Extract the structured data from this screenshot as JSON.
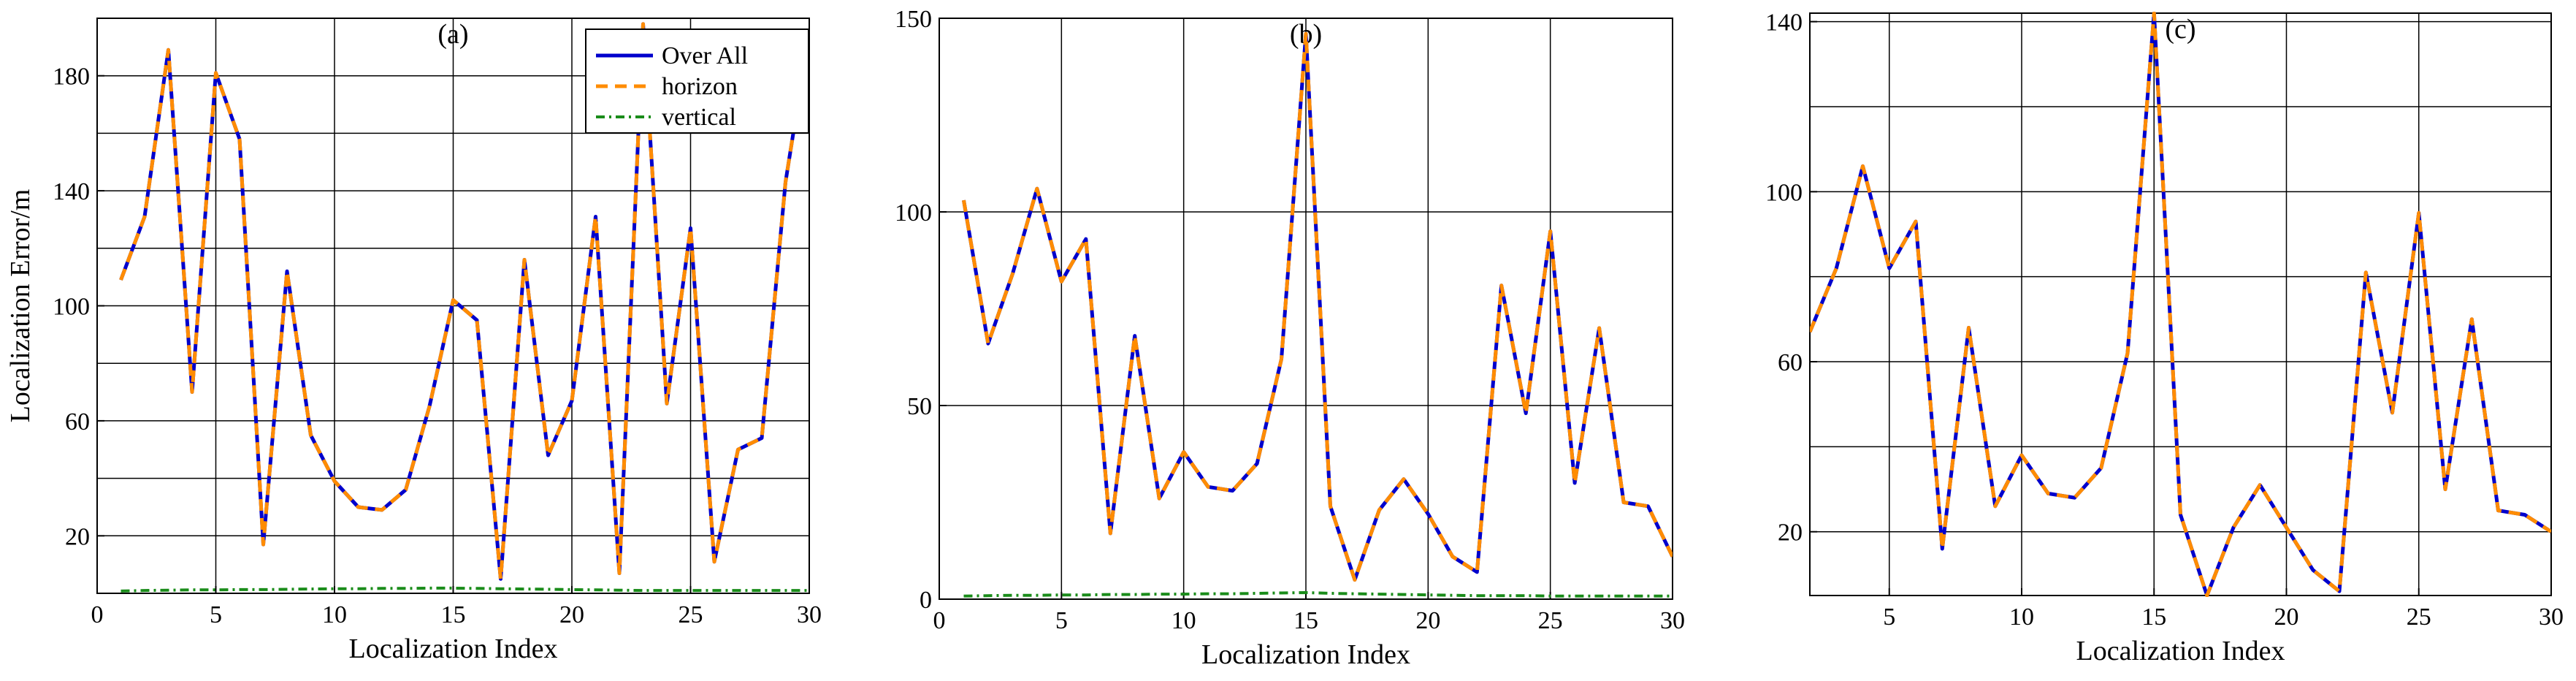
{
  "colors": {
    "overall": "#0000cc",
    "horizon": "#ff8c00",
    "vertical": "#1a8c1a",
    "grid": "#000000"
  },
  "chart_data": [
    {
      "type": "line",
      "title": "(a)",
      "xlabel": "Localization Index",
      "ylabel": "Localization Error/m",
      "xlim": [
        0,
        30
      ],
      "ylim": [
        0,
        200
      ],
      "xticks": [
        0,
        5,
        10,
        15,
        20,
        25,
        30
      ],
      "yticks": [
        20,
        60,
        100,
        140,
        180
      ],
      "ygrid": [
        20,
        40,
        60,
        80,
        100,
        120,
        140,
        160,
        180,
        200
      ],
      "legend": {
        "position": "top-right",
        "entries": [
          "Over All",
          "horizon",
          "vertical"
        ]
      },
      "x": [
        1,
        2,
        3,
        4,
        5,
        6,
        7,
        8,
        9,
        10,
        11,
        12,
        13,
        14,
        15,
        16,
        17,
        18,
        19,
        20,
        21,
        22,
        23,
        24,
        25,
        26,
        27,
        28,
        29,
        30
      ],
      "series": [
        {
          "name": "Over All",
          "style": "solid",
          "values": [
            109,
            131,
            189,
            70,
            181,
            158,
            17,
            112,
            55,
            39,
            30,
            29,
            36,
            65,
            102,
            95,
            5,
            116,
            48,
            67,
            131,
            7,
            198,
            66,
            127,
            11,
            50,
            54,
            143,
            195
          ]
        },
        {
          "name": "horizon",
          "style": "dashed",
          "values": [
            109,
            131,
            189,
            70,
            181,
            158,
            17,
            112,
            55,
            39,
            30,
            29,
            36,
            65,
            102,
            95,
            5,
            116,
            48,
            67,
            131,
            7,
            198,
            66,
            127,
            11,
            50,
            54,
            143,
            195
          ]
        },
        {
          "name": "vertical",
          "style": "dashdot",
          "values": [
            0.8,
            1.0,
            1.1,
            1.2,
            1.2,
            1.3,
            1.3,
            1.4,
            1.5,
            1.6,
            1.6,
            1.7,
            1.7,
            1.8,
            1.8,
            1.7,
            1.6,
            1.5,
            1.4,
            1.3,
            1.2,
            1.1,
            1.0,
            1.0,
            1.0,
            1.0,
            1.0,
            1.0,
            1.0,
            1.0
          ]
        }
      ]
    },
    {
      "type": "line",
      "title": "(b)",
      "xlabel": "Localization Index",
      "ylabel": "",
      "xlim": [
        0,
        30
      ],
      "ylim": [
        0,
        150
      ],
      "xticks": [
        0,
        5,
        10,
        15,
        20,
        25,
        30
      ],
      "yticks": [
        0,
        50,
        100,
        150
      ],
      "ygrid": [
        0,
        50,
        100,
        150
      ],
      "x": [
        1,
        2,
        3,
        4,
        5,
        6,
        7,
        8,
        9,
        10,
        11,
        12,
        13,
        14,
        15,
        16,
        17,
        18,
        19,
        20,
        21,
        22,
        23,
        24,
        25,
        26,
        27,
        28,
        29,
        30
      ],
      "series": [
        {
          "name": "Over All",
          "style": "solid",
          "values": [
            103,
            66,
            84,
            106,
            82,
            93,
            17,
            68,
            26,
            38,
            29,
            28,
            35,
            62,
            146,
            24,
            5,
            23,
            31,
            22,
            11,
            7,
            81,
            48,
            95,
            30,
            70,
            25,
            24,
            11
          ]
        },
        {
          "name": "horizon",
          "style": "dashed",
          "values": [
            103,
            66,
            84,
            106,
            82,
            93,
            17,
            68,
            26,
            38,
            29,
            28,
            35,
            62,
            146,
            24,
            5,
            23,
            31,
            22,
            11,
            7,
            81,
            48,
            95,
            30,
            70,
            25,
            24,
            11
          ]
        },
        {
          "name": "vertical",
          "style": "dashdot",
          "values": [
            0.8,
            0.9,
            1.0,
            1.0,
            1.1,
            1.1,
            1.2,
            1.2,
            1.3,
            1.3,
            1.4,
            1.4,
            1.5,
            1.6,
            1.7,
            1.5,
            1.4,
            1.3,
            1.2,
            1.1,
            1.0,
            0.9,
            0.9,
            0.9,
            0.8,
            0.8,
            0.8,
            0.8,
            0.8,
            0.8
          ]
        }
      ]
    },
    {
      "type": "line",
      "title": "(c)",
      "xlabel": "Localization Index",
      "ylabel": "",
      "xlim": [
        2,
        30
      ],
      "ylim": [
        5,
        142
      ],
      "xticks": [
        5,
        10,
        15,
        20,
        25,
        30
      ],
      "yticks": [
        20,
        60,
        100,
        140
      ],
      "ygrid": [
        20,
        40,
        60,
        80,
        100,
        120,
        140
      ],
      "x": [
        2,
        3,
        4,
        5,
        6,
        7,
        8,
        9,
        10,
        11,
        12,
        13,
        14,
        15,
        16,
        17,
        18,
        19,
        20,
        21,
        22,
        23,
        24,
        25,
        26,
        27,
        28,
        29,
        30
      ],
      "series": [
        {
          "name": "Over All",
          "style": "solid",
          "values": [
            67,
            82,
            106,
            82,
            93,
            16,
            68,
            26,
            38,
            29,
            28,
            35,
            62,
            142,
            24,
            5,
            21,
            31,
            21,
            11,
            6,
            81,
            48,
            95,
            30,
            70,
            25,
            24,
            20
          ]
        },
        {
          "name": "horizon",
          "style": "dashed",
          "values": [
            67,
            82,
            106,
            82,
            93,
            16,
            68,
            26,
            38,
            29,
            28,
            35,
            62,
            142,
            24,
            5,
            21,
            31,
            21,
            11,
            6,
            81,
            48,
            95,
            30,
            70,
            25,
            24,
            20
          ]
        }
      ]
    }
  ]
}
